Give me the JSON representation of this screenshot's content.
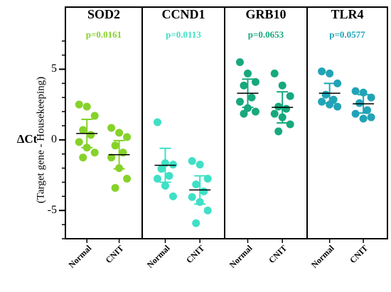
{
  "chart_data": {
    "type": "scatter",
    "ylabel": "ΔCt",
    "ylabel_sub": "(Target gene - Housekeeping)",
    "ylim": [
      -7,
      9.4
    ],
    "yticks": [
      -5,
      0,
      5
    ],
    "yminorticks": [
      -7,
      -6,
      -5,
      -4,
      -3,
      -2,
      -1,
      0,
      1,
      2,
      3,
      4,
      5,
      6,
      7
    ],
    "panels": [
      {
        "title": "SOD2",
        "p_label": "p=0.0161",
        "color": "#86d22a",
        "groups": [
          {
            "name": "Normal",
            "values": [
              2.5,
              2.35,
              1.7,
              0.7,
              0.35,
              -0.15,
              -0.55,
              -0.9,
              -1.25
            ],
            "mean": 0.45,
            "sd": 1.0
          },
          {
            "name": "CNIT",
            "values": [
              0.85,
              0.5,
              0.2,
              -0.4,
              -0.9,
              -1.25,
              -2.0,
              -2.75,
              -3.4
            ],
            "mean": -1.05,
            "sd": 1.0
          }
        ]
      },
      {
        "title": "CCND1",
        "p_label": "p=0.0113",
        "color": "#3fe0c6",
        "groups": [
          {
            "name": "Normal",
            "values": [
              1.25,
              -1.65,
              -1.75,
              -2.05,
              -2.55,
              -2.75,
              -3.25,
              -4.0
            ],
            "mean": -1.8,
            "sd": 1.2
          },
          {
            "name": "CNIT",
            "values": [
              -1.5,
              -1.75,
              -2.75,
              -3.15,
              -3.65,
              -4.05,
              -4.4,
              -5.0,
              -5.9
            ],
            "mean": -3.55,
            "sd": 1.0
          }
        ]
      },
      {
        "title": "GRB10",
        "p_label": "p=0.0653",
        "color": "#17a87e",
        "groups": [
          {
            "name": "Normal",
            "values": [
              5.5,
              4.7,
              4.1,
              3.85,
              3.0,
              2.7,
              2.25,
              2.0,
              1.85
            ],
            "mean": 3.3,
            "sd": 1.0
          },
          {
            "name": "CNIT",
            "values": [
              4.7,
              3.85,
              3.1,
              2.35,
              2.2,
              1.85,
              1.6,
              1.1,
              0.6
            ],
            "mean": 2.3,
            "sd": 1.1
          }
        ]
      },
      {
        "title": "TLR4",
        "p_label": "p=0.0577",
        "color": "#21a3b7",
        "groups": [
          {
            "name": "Normal",
            "values": [
              4.85,
              4.7,
              4.0,
              3.2,
              2.85,
              2.7,
              2.5,
              2.35
            ],
            "mean": 3.3,
            "sd": 0.7
          },
          {
            "name": "CNIT",
            "values": [
              3.45,
              3.35,
              3.0,
              2.6,
              2.1,
              1.85,
              1.5,
              1.6
            ],
            "mean": 2.55,
            "sd": 0.65
          }
        ]
      }
    ]
  }
}
